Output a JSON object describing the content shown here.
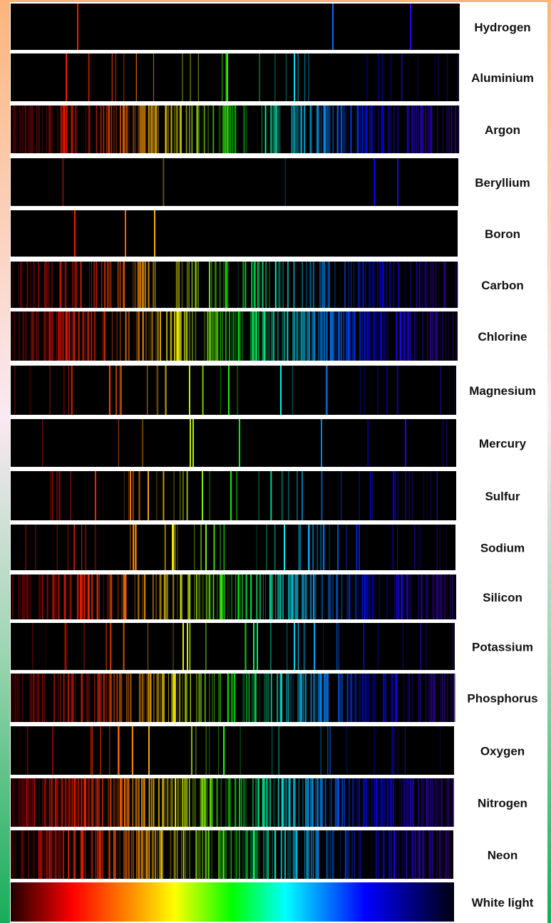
{
  "spectra": [
    {
      "label": "Hydrogen"
    },
    {
      "label": "Aluminium"
    },
    {
      "label": "Argon"
    },
    {
      "label": "Beryllium"
    },
    {
      "label": "Boron"
    },
    {
      "label": "Carbon"
    },
    {
      "label": "Chlorine"
    },
    {
      "label": "Magnesium"
    },
    {
      "label": "Mercury"
    },
    {
      "label": "Sulfur"
    },
    {
      "label": "Sodium"
    },
    {
      "label": "Silicon"
    },
    {
      "label": "Potassium"
    },
    {
      "label": "Phosphorus"
    },
    {
      "label": "Oxygen"
    },
    {
      "label": "Nitrogen"
    },
    {
      "label": "Neon"
    },
    {
      "label": "White light"
    }
  ]
}
